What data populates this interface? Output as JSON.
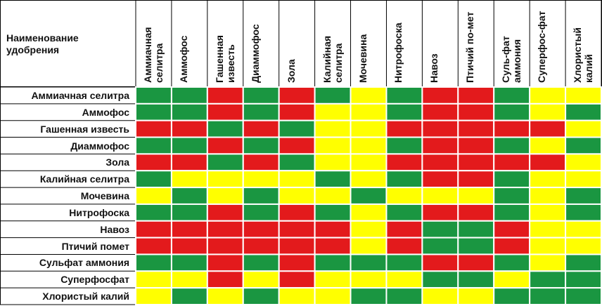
{
  "chart_data": {
    "type": "table",
    "title": "",
    "corner_header": "Наименование удобрения",
    "rows": [
      "Аммиачная селитра",
      "Аммофос",
      "Гашенная известь",
      "Диаммофос",
      "Зола",
      "Калийная селитра",
      "Мочевина",
      "Нитрофоска",
      "Навоз",
      "Птичий помет",
      "Сульфат аммония",
      "Суперфосфат",
      "Хлористый калий"
    ],
    "columns": [
      "Аммиачная селитра",
      "Аммофос",
      "Гашенная известь",
      "Диаммофос",
      "Зола",
      "Калийная селитра",
      "Мочевина",
      "Нитрофоска",
      "Навоз",
      "Птичий по-мет",
      "Суль-фат аммония",
      "Суперфос-фат",
      "Хлористый калий"
    ],
    "legend_colors": {
      "G": "#1a9641",
      "Y": "#ffff00",
      "R": "#e31a1c"
    },
    "grid_color": "#ffffff",
    "cells": [
      [
        "G",
        "G",
        "R",
        "G",
        "R",
        "G",
        "Y",
        "G",
        "R",
        "R",
        "G",
        "Y",
        "Y"
      ],
      [
        "G",
        "G",
        "R",
        "G",
        "R",
        "Y",
        "Y",
        "G",
        "R",
        "R",
        "G",
        "Y",
        "G"
      ],
      [
        "R",
        "R",
        "G",
        "R",
        "G",
        "Y",
        "Y",
        "R",
        "R",
        "R",
        "R",
        "R",
        "Y"
      ],
      [
        "G",
        "G",
        "R",
        "G",
        "R",
        "Y",
        "Y",
        "G",
        "R",
        "R",
        "G",
        "Y",
        "G"
      ],
      [
        "R",
        "R",
        "G",
        "R",
        "G",
        "Y",
        "Y",
        "R",
        "R",
        "R",
        "R",
        "R",
        "Y"
      ],
      [
        "G",
        "Y",
        "Y",
        "Y",
        "Y",
        "G",
        "Y",
        "G",
        "R",
        "R",
        "G",
        "Y",
        "Y"
      ],
      [
        "Y",
        "G",
        "Y",
        "G",
        "Y",
        "Y",
        "G",
        "Y",
        "Y",
        "Y",
        "G",
        "Y",
        "G"
      ],
      [
        "G",
        "G",
        "R",
        "G",
        "R",
        "G",
        "Y",
        "G",
        "R",
        "R",
        "G",
        "Y",
        "G"
      ],
      [
        "R",
        "R",
        "R",
        "R",
        "R",
        "R",
        "Y",
        "R",
        "G",
        "G",
        "R",
        "Y",
        "Y"
      ],
      [
        "R",
        "R",
        "R",
        "R",
        "R",
        "R",
        "Y",
        "R",
        "G",
        "G",
        "R",
        "Y",
        "Y"
      ],
      [
        "G",
        "G",
        "R",
        "G",
        "R",
        "G",
        "G",
        "G",
        "R",
        "R",
        "G",
        "Y",
        "G"
      ],
      [
        "Y",
        "Y",
        "R",
        "Y",
        "R",
        "Y",
        "Y",
        "Y",
        "G",
        "G",
        "Y",
        "G",
        "G"
      ],
      [
        "Y",
        "G",
        "Y",
        "G",
        "Y",
        "Y",
        "G",
        "G",
        "Y",
        "Y",
        "G",
        "G",
        "G"
      ]
    ]
  }
}
